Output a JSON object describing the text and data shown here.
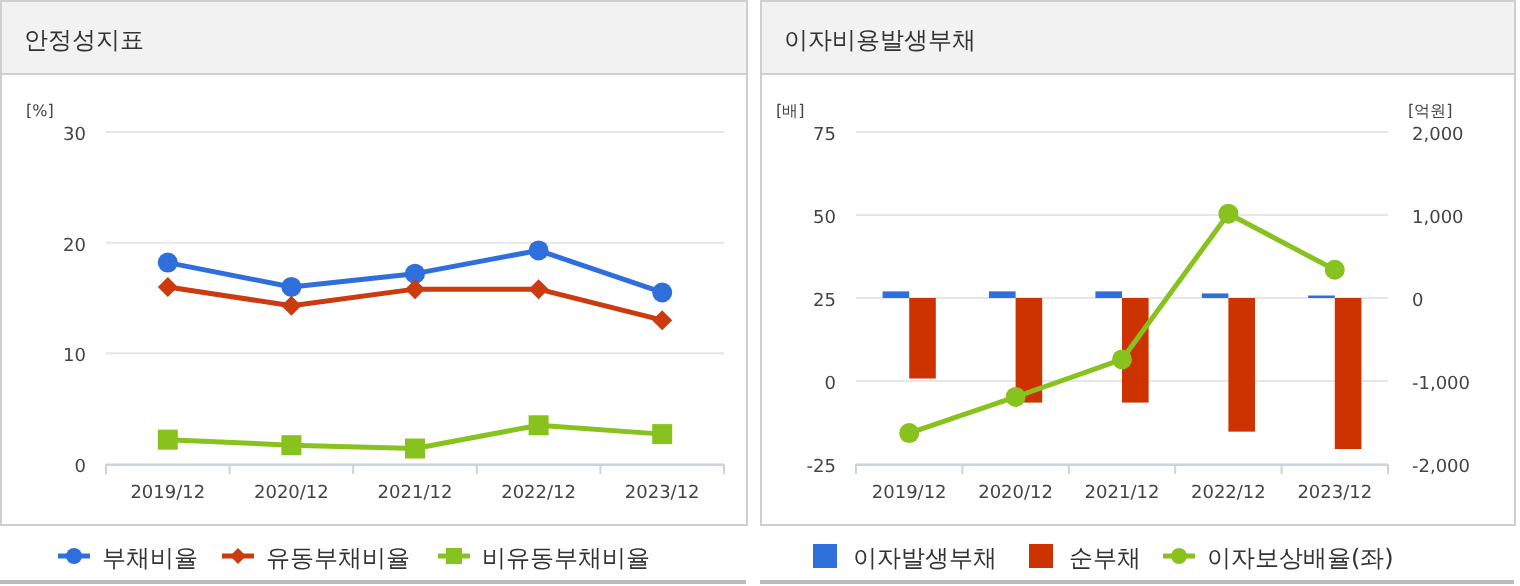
{
  "chart_data": [
    {
      "type": "line",
      "title": "안정성지표",
      "ylabel": "[%]",
      "categories": [
        "2019/12",
        "2020/12",
        "2021/12",
        "2022/12",
        "2023/12"
      ],
      "series": [
        {
          "name": "부채비율",
          "color": "#2f6fdc",
          "marker": "circle",
          "values": [
            18.2,
            16.0,
            17.2,
            19.3,
            15.5
          ]
        },
        {
          "name": "유동부채비율",
          "color": "#cc3a10",
          "marker": "diamond",
          "values": [
            16.0,
            14.3,
            15.8,
            15.8,
            13.0
          ]
        },
        {
          "name": "비유동부채비율",
          "color": "#88c21e",
          "marker": "square",
          "values": [
            2.2,
            1.7,
            1.4,
            3.5,
            2.7
          ]
        }
      ],
      "ylim": [
        0,
        30
      ],
      "yticks": [
        0,
        10,
        20,
        30
      ],
      "grid": "y",
      "legend": "bottom"
    },
    {
      "type": "bar",
      "title": "이자비용발생부채",
      "ylabel": "[배]",
      "y2label": "[억원]",
      "categories": [
        "2019/12",
        "2020/12",
        "2021/12",
        "2022/12",
        "2023/12"
      ],
      "series": [
        {
          "name": "이자발생부채",
          "color": "#2f6fdc",
          "axis": "y2",
          "values": [
            80,
            80,
            80,
            55,
            30
          ]
        },
        {
          "name": "순부채",
          "color": "#cc3300",
          "axis": "y2",
          "values": [
            -970,
            -1260,
            -1260,
            -1610,
            -1820
          ]
        },
        {
          "name": "이자보상배율(좌)",
          "color": "#88c21e",
          "type": "line",
          "marker": "circle",
          "values": [
            -15.7,
            -4.8,
            6.5,
            50.4,
            33.5
          ]
        }
      ],
      "ylim": [
        -25,
        75
      ],
      "yticks": [
        -25,
        0,
        25,
        50,
        75
      ],
      "y2lim": [
        -2000,
        2000
      ],
      "y2ticks": [
        {
          "value": -2000,
          "label": "-2,000"
        },
        {
          "value": -1000,
          "label": "-1,000"
        },
        0,
        {
          "value": 1000,
          "label": "1,000"
        },
        {
          "value": 2000,
          "label": "2,000"
        }
      ],
      "grid": "y",
      "legend": "bottom"
    }
  ]
}
